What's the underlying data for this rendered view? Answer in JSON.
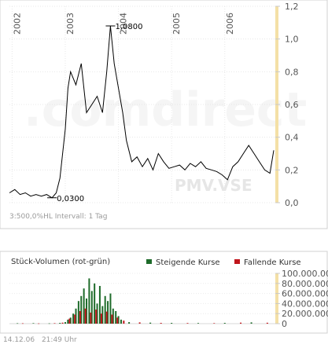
{
  "chart_data": [
    {
      "type": "line",
      "title": "",
      "watermark": ".comdirect",
      "symbol_watermark": "PMV.VSE",
      "footer_note": "3:500,0%HL Intervall: 1 Tag",
      "x_labels": [
        "2002",
        "2003",
        "2004",
        "2005",
        "2006"
      ],
      "y_ticks": [
        "1,2",
        "1,0",
        "0,8",
        "0,6",
        "0,4",
        "0,2",
        "0,0"
      ],
      "ylim": [
        0.0,
        1.2
      ],
      "annotations": [
        {
          "label": "1,0800",
          "x": "2003.85",
          "y": 1.08
        },
        {
          "label": "0,0300",
          "x": "2002.75",
          "y": 0.03
        }
      ],
      "line_color": "#000000",
      "axis_highlight_color": "#f4e0a6",
      "series": [
        {
          "x": [
            2001.95,
            2002.05,
            2002.15,
            2002.25,
            2002.35,
            2002.45,
            2002.55,
            2002.65,
            2002.75,
            2002.83,
            2002.9,
            2003.0,
            2003.05,
            2003.1,
            2003.2,
            2003.3,
            2003.4,
            2003.5,
            2003.6,
            2003.7,
            2003.78,
            2003.85,
            2003.92,
            2004.0,
            2004.08,
            2004.15,
            2004.25,
            2004.35,
            2004.45,
            2004.55,
            2004.65,
            2004.75,
            2004.85,
            2004.95,
            2005.05,
            2005.15,
            2005.25,
            2005.35,
            2005.45,
            2005.55,
            2005.65,
            2005.75,
            2005.85,
            2005.95,
            2006.05,
            2006.15,
            2006.25,
            2006.35,
            2006.45,
            2006.55,
            2006.65,
            2006.75,
            2006.85,
            2006.92
          ],
          "values": [
            0.06,
            0.08,
            0.05,
            0.06,
            0.04,
            0.05,
            0.04,
            0.05,
            0.03,
            0.06,
            0.15,
            0.45,
            0.7,
            0.8,
            0.72,
            0.85,
            0.55,
            0.6,
            0.65,
            0.55,
            0.8,
            1.08,
            0.85,
            0.7,
            0.55,
            0.38,
            0.25,
            0.28,
            0.22,
            0.27,
            0.2,
            0.3,
            0.25,
            0.21,
            0.22,
            0.23,
            0.2,
            0.24,
            0.22,
            0.25,
            0.21,
            0.2,
            0.19,
            0.17,
            0.14,
            0.22,
            0.25,
            0.3,
            0.35,
            0.3,
            0.25,
            0.2,
            0.18,
            0.32
          ]
        }
      ]
    },
    {
      "type": "bar",
      "title": "Stück-Volumen (rot-grün)",
      "legend": [
        {
          "name": "Steigende Kurse",
          "color": "#1e6b2a"
        },
        {
          "name": "Fallende Kurse",
          "color": "#c0161c"
        }
      ],
      "y_ticks": [
        "100.000.000",
        "80.000.000",
        "60.000.000",
        "40.000.000",
        "20.000.000",
        "0"
      ],
      "ylim": [
        0,
        100000000
      ],
      "series": [
        {
          "name": "Steigende Kurse",
          "color": "#1e6b2a",
          "x": [
            2002.1,
            2002.4,
            2002.7,
            2002.9,
            2003.0,
            2003.05,
            2003.1,
            2003.15,
            2003.2,
            2003.25,
            2003.3,
            2003.35,
            2003.4,
            2003.45,
            2003.5,
            2003.55,
            2003.6,
            2003.65,
            2003.7,
            2003.75,
            2003.8,
            2003.85,
            2003.9,
            2003.95,
            2004.0,
            2004.05,
            2004.2,
            2004.6,
            2005.0,
            2005.5,
            2006.0,
            2006.5
          ],
          "values": [
            800000,
            1000000,
            600000,
            1500000,
            3000000,
            8000000,
            12000000,
            20000000,
            30000000,
            45000000,
            55000000,
            70000000,
            50000000,
            90000000,
            65000000,
            80000000,
            40000000,
            75000000,
            35000000,
            55000000,
            45000000,
            60000000,
            30000000,
            25000000,
            15000000,
            8000000,
            3000000,
            2000000,
            1500000,
            1200000,
            1500000,
            2500000
          ]
        },
        {
          "name": "Fallende Kurse",
          "color": "#c0161c",
          "x": [
            2002.2,
            2002.5,
            2002.8,
            2002.95,
            2003.08,
            2003.18,
            2003.28,
            2003.38,
            2003.48,
            2003.58,
            2003.68,
            2003.78,
            2003.88,
            2003.98,
            2004.1,
            2004.4,
            2004.8,
            2005.3,
            2005.8,
            2006.3,
            2006.8
          ],
          "values": [
            700000,
            500000,
            900000,
            2000000,
            10000000,
            18000000,
            25000000,
            30000000,
            22000000,
            28000000,
            20000000,
            24000000,
            18000000,
            12000000,
            6000000,
            2500000,
            1500000,
            1200000,
            1000000,
            2000000,
            1800000
          ]
        }
      ]
    }
  ],
  "footer": {
    "date": "14.12.06",
    "time": "21:49 Uhr"
  }
}
